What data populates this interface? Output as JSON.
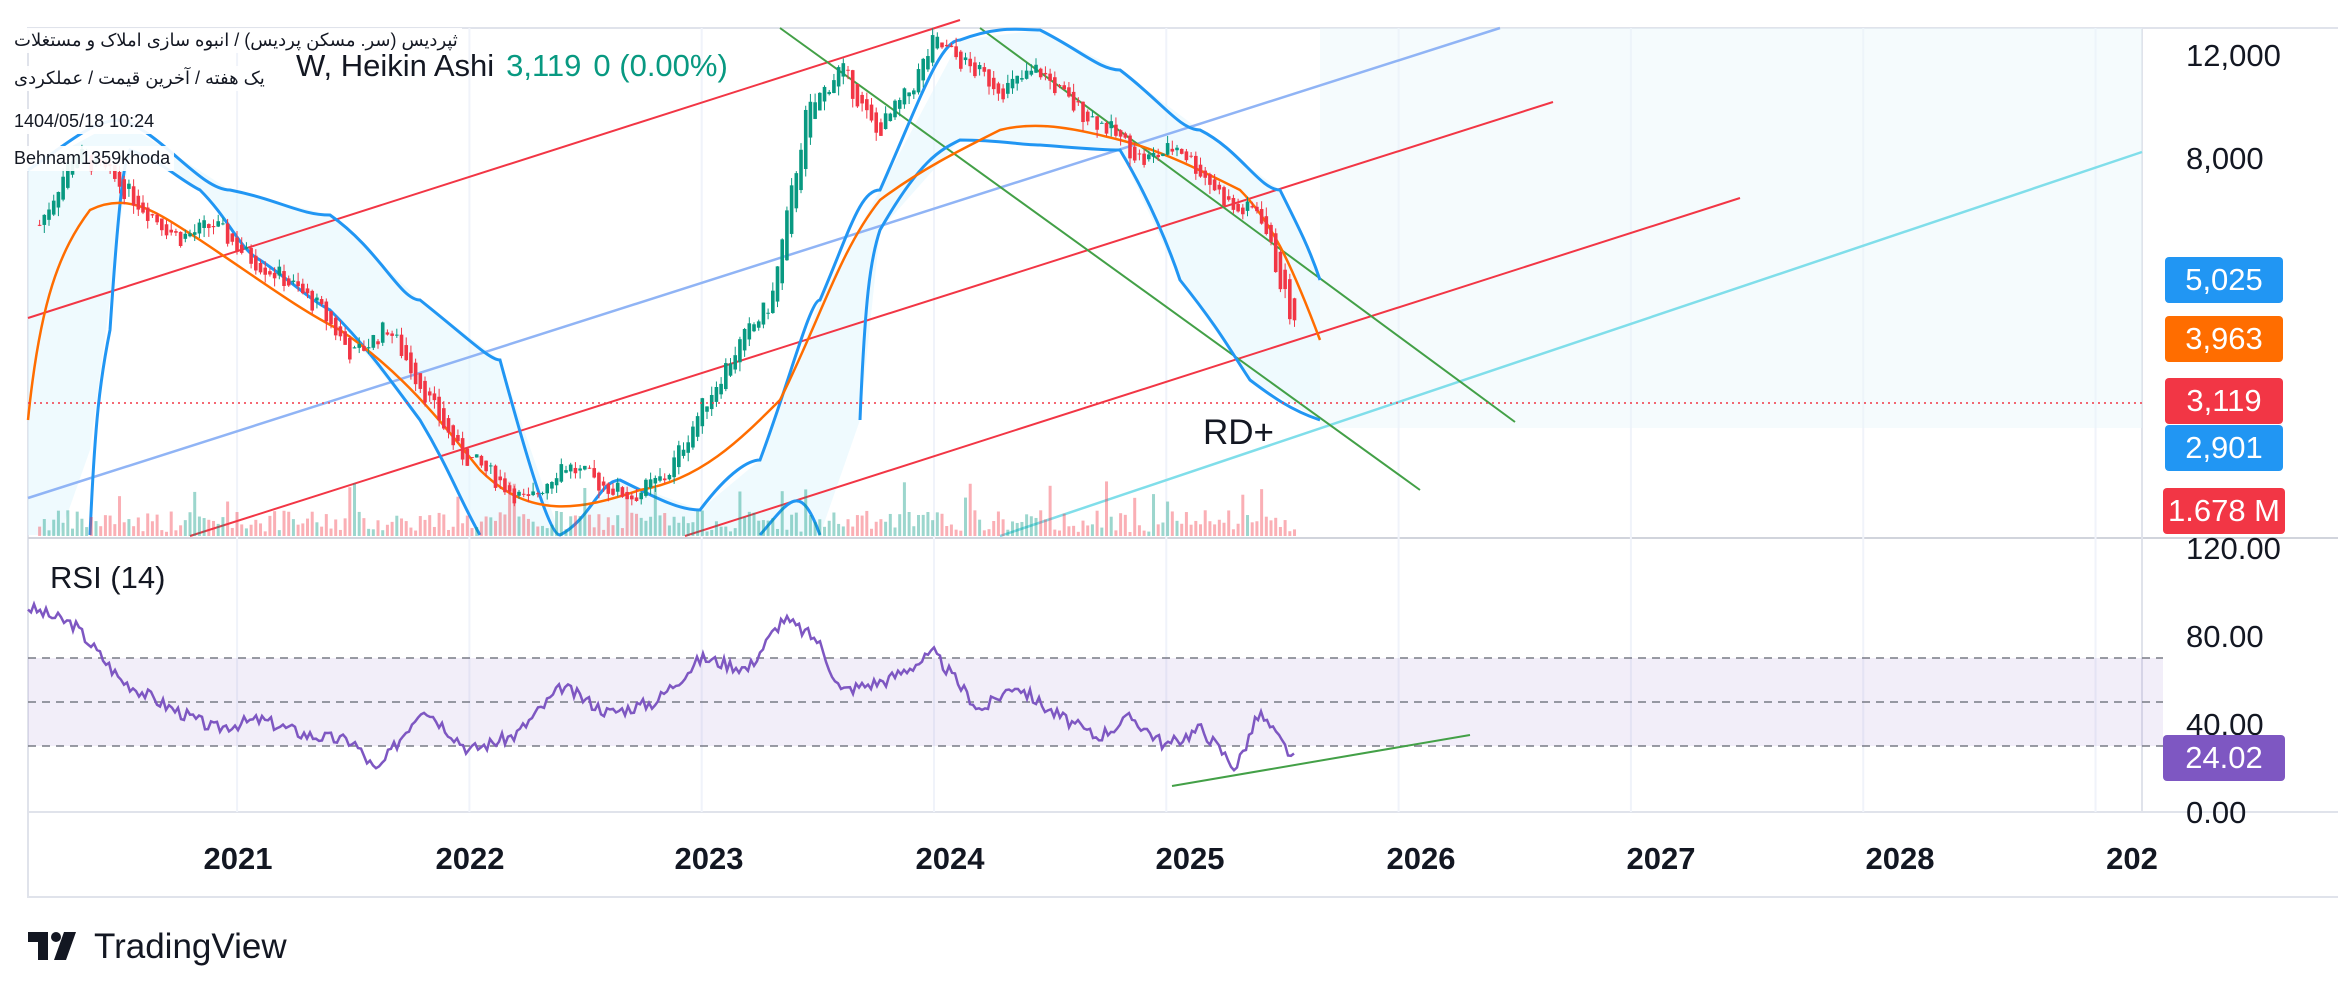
{
  "header": {
    "title_line1": "ثپردیس (سر. مسکن پردیس) / انبوه سازی املاک و مستغلات",
    "title_line2": "یک هفته / آخرین قیمت / عملکردی",
    "timestamp": "1404/05/18 10:24",
    "author": "Behnam1359khoda",
    "symbol_fragment": "W, Heikin Ashi",
    "last_price": "3,119",
    "change": "0 (0.00%)"
  },
  "colors": {
    "up": "#089981",
    "down": "#F23645",
    "bollinger": "#2196F3",
    "ma": "#FF6D00",
    "rsi_line": "#7E57C2",
    "channel_red": "#F23645",
    "channel_blue": "#90B4F5",
    "channel_cyan": "#80DEEA",
    "trend_green": "#43A047"
  },
  "price_badges": [
    {
      "label": "5,025",
      "color": "#2196F3",
      "meaning": "bollinger-upper"
    },
    {
      "label": "3,963",
      "color": "#FF6D00",
      "meaning": "moving-average"
    },
    {
      "label": "3,119",
      "color": "#F23645",
      "meaning": "last-price"
    },
    {
      "label": "2,901",
      "color": "#2196F3",
      "meaning": "bollinger-lower"
    },
    {
      "label": "1.678 M",
      "color": "#F23645",
      "meaning": "volume"
    }
  ],
  "rsi": {
    "title": "RSI (14)",
    "value_label": "24.02",
    "value_color": "#7E57C2"
  },
  "annotation": "RD+",
  "brand": "TradingView",
  "chart_data": [
    {
      "type": "candlestick",
      "series_style": "Heikin Ashi",
      "y_scale": "log",
      "ylim": [
        1300,
        12500
      ],
      "y_ticks": [
        "12,000",
        "8,000"
      ],
      "x_ticks": [
        "2021",
        "2022",
        "2023",
        "2024",
        "2025",
        "2026",
        "2027",
        "2028",
        "202"
      ],
      "xlim": [
        2020.1,
        2029.2
      ],
      "x": [
        2020.15,
        2020.3,
        2020.45,
        2020.6,
        2020.75,
        2020.9,
        2021.05,
        2021.2,
        2021.35,
        2021.5,
        2021.65,
        2021.8,
        2021.95,
        2022.1,
        2022.25,
        2022.4,
        2022.55,
        2022.7,
        2022.85,
        2023.0,
        2023.15,
        2023.3,
        2023.45,
        2023.6,
        2023.75,
        2023.9,
        2024.0,
        2024.15,
        2024.3,
        2024.45,
        2024.6,
        2024.75,
        2024.9,
        2025.05,
        2025.2,
        2025.3,
        2025.4,
        2025.5,
        2025.57
      ],
      "close": [
        5200,
        7200,
        6500,
        5600,
        4900,
        5200,
        4500,
        4100,
        3600,
        2900,
        3300,
        2500,
        1900,
        1700,
        1500,
        1800,
        1650,
        1550,
        1700,
        2300,
        3000,
        3700,
        8500,
        10500,
        7800,
        9500,
        11800,
        10500,
        9500,
        10400,
        8800,
        8000,
        6900,
        7400,
        6200,
        5500,
        5600,
        3900,
        3119
      ],
      "volume_max_label": "1.678 M"
    },
    {
      "type": "line",
      "title": "RSI (14)",
      "ylim": [
        0,
        120
      ],
      "y_ticks": [
        "120.00",
        "80.00",
        "40.00",
        "0.00"
      ],
      "bands": [
        30,
        50,
        70
      ],
      "x": [
        2020.1,
        2020.3,
        2020.5,
        2020.7,
        2020.9,
        2021.1,
        2021.3,
        2021.5,
        2021.6,
        2021.8,
        2022.0,
        2022.2,
        2022.4,
        2022.6,
        2022.8,
        2023.0,
        2023.2,
        2023.35,
        2023.5,
        2023.6,
        2023.8,
        2024.0,
        2024.2,
        2024.35,
        2024.5,
        2024.7,
        2024.85,
        2025.0,
        2025.15,
        2025.3,
        2025.4,
        2025.55
      ],
      "values": [
        93,
        85,
        60,
        48,
        38,
        42,
        35,
        32,
        18,
        48,
        28,
        35,
        57,
        45,
        50,
        70,
        65,
        88,
        78,
        55,
        60,
        72,
        46,
        58,
        46,
        34,
        43,
        30,
        38,
        20,
        45,
        24.02
      ],
      "last_label": "24.02"
    }
  ]
}
